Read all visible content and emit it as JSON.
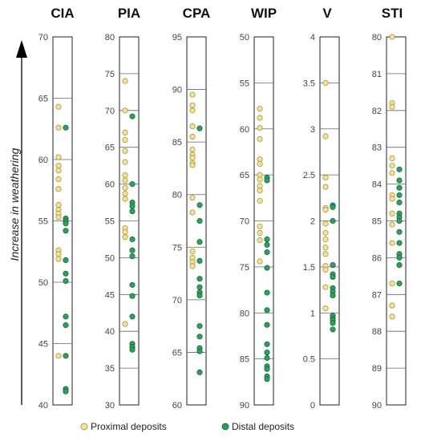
{
  "weathering_label": "Increase in weathering",
  "colors": {
    "proximal": "#f5e28f",
    "distal": "#27a35a",
    "proximal_edge": "#9a8a3a",
    "distal_edge": "#155e33"
  },
  "legend": [
    {
      "key": "proximal",
      "label": "Proximal deposits"
    },
    {
      "key": "distal",
      "label": "Distal deposits"
    }
  ],
  "chart_data": [
    {
      "type": "scatter",
      "title": "CIA",
      "ylim": [
        40,
        70
      ],
      "ticks": [
        "40",
        "45",
        "50",
        "55",
        "60",
        "65",
        "70"
      ],
      "inverted": false,
      "series": [
        {
          "name": "Proximal deposits",
          "values": [
            64.3,
            62.6,
            60.2,
            59.5,
            59.1,
            58.4,
            57.6,
            56.3,
            55.9,
            55.6,
            55.3,
            52.6,
            52.3,
            51.9,
            44.0
          ]
        },
        {
          "name": "Distal deposits",
          "values": [
            62.6,
            55.2,
            55.0,
            54.8,
            54.2,
            51.8,
            50.7,
            50.1,
            47.2,
            46.5,
            44.0,
            41.3,
            41.1
          ]
        }
      ]
    },
    {
      "type": "scatter",
      "title": "PIA",
      "ylim": [
        30,
        80
      ],
      "ticks": [
        "30",
        "35",
        "40",
        "45",
        "50",
        "55",
        "60",
        "65",
        "70",
        "75",
        "80"
      ],
      "inverted": false,
      "series": [
        {
          "name": "Proximal deposits",
          "values": [
            74.0,
            70.0,
            67.0,
            66.0,
            64.5,
            63.0,
            61.2,
            60.5,
            59.5,
            58.7,
            58.0,
            54.0,
            53.5,
            52.8,
            41.0
          ]
        },
        {
          "name": "Distal deposits",
          "values": [
            69.2,
            60.0,
            57.5,
            57.0,
            56.3,
            52.5,
            51.0,
            50.2,
            46.3,
            44.8,
            42.0,
            38.3,
            37.9,
            37.5
          ]
        }
      ]
    },
    {
      "type": "scatter",
      "title": "CPA",
      "ylim": [
        60,
        95
      ],
      "ticks": [
        "60",
        "65",
        "70",
        "75",
        "80",
        "85",
        "90",
        "95"
      ],
      "inverted": false,
      "series": [
        {
          "name": "Proximal deposits",
          "values": [
            89.5,
            88.5,
            88.0,
            86.5,
            85.5,
            84.3,
            83.8,
            83.5,
            83.0,
            82.8,
            79.7,
            78.3,
            74.6,
            74.0,
            73.6,
            73.2
          ]
        },
        {
          "name": "Distal deposits",
          "values": [
            86.3,
            79.0,
            77.5,
            75.5,
            73.7,
            72.0,
            71.2,
            70.7,
            70.4,
            67.5,
            66.5,
            65.4,
            65.1,
            63.1
          ]
        }
      ]
    },
    {
      "type": "scatter",
      "title": "WIP",
      "ylim": [
        90,
        50
      ],
      "ticks": [
        "50",
        "55",
        "60",
        "65",
        "70",
        "75",
        "80",
        "85",
        "90"
      ],
      "inverted": true,
      "series": [
        {
          "name": "Proximal deposits",
          "values": [
            57.8,
            58.8,
            59.9,
            61.1,
            63.3,
            63.8,
            65.0,
            65.5,
            66.2,
            66.7,
            67.8,
            70.6,
            71.3,
            72.1,
            74.4
          ]
        },
        {
          "name": "Distal deposits",
          "values": [
            65.3,
            65.6,
            72.0,
            72.6,
            73.4,
            75.1,
            77.8,
            79.7,
            81.3,
            83.4,
            84.3,
            84.9,
            85.8,
            86.1,
            86.9,
            87.2
          ]
        }
      ]
    },
    {
      "type": "scatter",
      "title": "V",
      "ylim": [
        0,
        4
      ],
      "ticks": [
        "0",
        "0.5",
        "1",
        "1.5",
        "2",
        "2.5",
        "3",
        "3.5",
        "4"
      ],
      "inverted": false,
      "series": [
        {
          "name": "Proximal deposits",
          "values": [
            3.5,
            2.92,
            2.47,
            2.37,
            2.14,
            2.12,
            1.97,
            1.87,
            1.8,
            1.71,
            1.64,
            1.51,
            1.47,
            1.28,
            1.05
          ]
        },
        {
          "name": "Distal deposits",
          "values": [
            2.17,
            2.15,
            2.0,
            1.52,
            1.42,
            1.39,
            1.27,
            1.23,
            1.19,
            0.97,
            0.94,
            0.92,
            0.89,
            0.82
          ]
        }
      ]
    },
    {
      "type": "scatter",
      "title": "STI",
      "ylim": [
        90,
        80
      ],
      "ticks": [
        "80",
        "81",
        "82",
        "83",
        "84",
        "85",
        "86",
        "87",
        "88",
        "89",
        "90"
      ],
      "inverted": true,
      "series": [
        {
          "name": "Proximal deposits",
          "values": [
            80.0,
            81.8,
            81.9,
            83.3,
            83.5,
            83.7,
            84.3,
            84.4,
            84.8,
            85.1,
            85.6,
            86.7,
            87.3,
            87.6
          ]
        },
        {
          "name": "Distal deposits",
          "values": [
            83.6,
            83.9,
            84.1,
            84.3,
            84.5,
            84.8,
            84.9,
            85.0,
            85.3,
            85.6,
            85.9,
            86.0,
            86.2,
            86.7
          ]
        }
      ]
    }
  ]
}
